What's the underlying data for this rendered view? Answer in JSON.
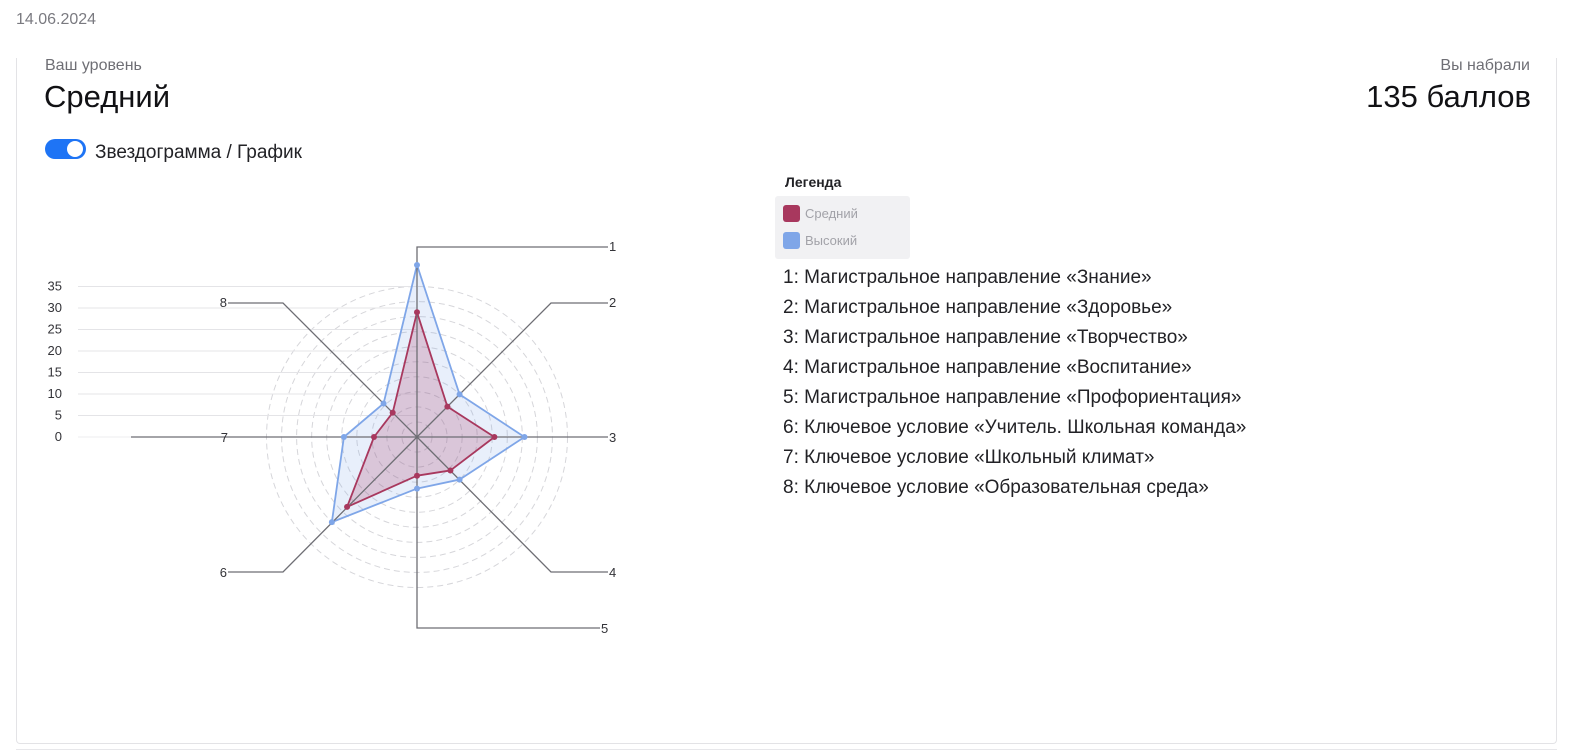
{
  "date": "14.06.2024",
  "level": {
    "caption": "Ваш уровень",
    "value": "Средний"
  },
  "score": {
    "caption": "Вы набрали",
    "value": "135 баллов"
  },
  "view_toggle": {
    "label": "Звездограмма / График",
    "checked": true,
    "accent_color": "#1e74f5"
  },
  "legend": {
    "title": "Легенда"
  },
  "axes_descriptions": [
    "1: Магистральное направление «Знание»",
    "2: Магистральное направление «Здоровье»",
    "3: Магистральное направление «Творчество»",
    "4: Магистральное направление «Воспитание»",
    "5: Магистральное направление «Профориентация»",
    "6: Ключевое условие «Учитель. Школьная команда»",
    "7: Ключевое условие «Школьный климат»",
    "8: Ключевое условие «Образовательная среда»"
  ],
  "chart_data": {
    "type": "radar",
    "axes": [
      "1",
      "2",
      "3",
      "4",
      "5",
      "6",
      "7",
      "8"
    ],
    "scale": {
      "ticks": [
        0,
        5,
        10,
        15,
        20,
        25,
        30,
        35
      ],
      "max": 35
    },
    "grid": "dashed-circles",
    "legend_position": "right",
    "series": [
      {
        "name": "Средний",
        "color": "#a8385e",
        "values": [
          29,
          10,
          18,
          11,
          9,
          23,
          10,
          8
        ]
      },
      {
        "name": "Высокий",
        "color": "#7fa6e8",
        "values": [
          40,
          14,
          25,
          14,
          12,
          28,
          17,
          11
        ]
      }
    ]
  }
}
